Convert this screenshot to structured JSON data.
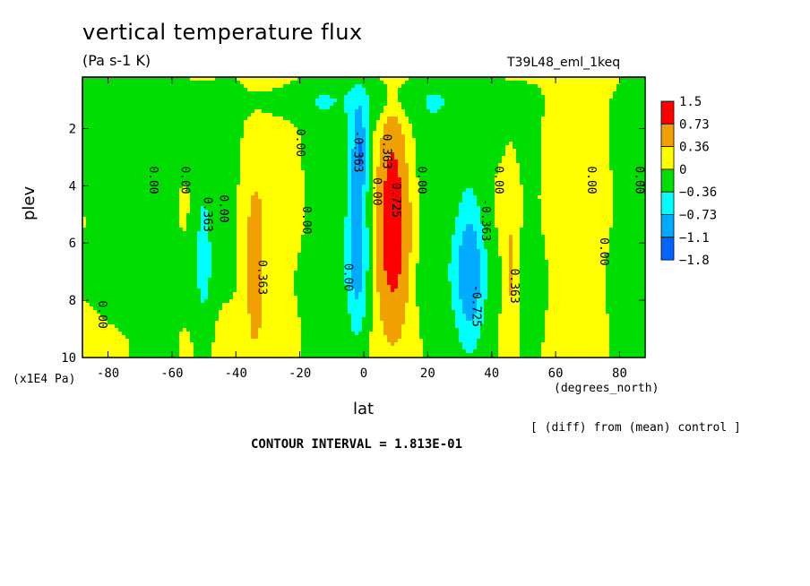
{
  "chart_data": {
    "type": "heatmap",
    "title": "vertical temperature flux",
    "subtitle": "(Pa s-1 K)",
    "run_label": "T39L48_eml_1keq",
    "xlabel": "lat",
    "x_units": "(degrees_north)",
    "ylabel": "plev",
    "y_units": "(x1E4 Pa)",
    "xlim": [
      -88,
      88
    ],
    "ylim": [
      10,
      0.2
    ],
    "x_ticks": [
      "-80",
      "-60",
      "-40",
      "-20",
      "0",
      "20",
      "40",
      "60",
      "80"
    ],
    "x_tick_values": [
      -80,
      -60,
      -40,
      -20,
      0,
      20,
      40,
      60,
      80
    ],
    "y_ticks": [
      "2",
      "4",
      "6",
      "8",
      "10"
    ],
    "y_tick_values": [
      2,
      4,
      6,
      8,
      10
    ],
    "note": "[ (diff) from (mean) control ]",
    "contour_interval": "CONTOUR INTERVAL = 1.813E-01",
    "legend": {
      "placement": "right",
      "labels": [
        "1.5",
        "0.73",
        "0.36",
        "0",
        "−0.36",
        "−0.73",
        "−1.1",
        "−1.8"
      ],
      "colors": [
        "#ff0000",
        "#f0a000",
        "#ffff00",
        "#00dd00",
        "#00ffff",
        "#00aaff",
        "#0066ff"
      ]
    },
    "contour_labels": [
      {
        "text": "0.00",
        "lat": -83,
        "lev": 8.5
      },
      {
        "text": "0.00",
        "lat": -67,
        "lev": 3.8
      },
      {
        "text": "0.00",
        "lat": -57,
        "lev": 3.8
      },
      {
        "text": "0.363",
        "lat": -50,
        "lev": 5.0
      },
      {
        "text": "0.00",
        "lat": -45,
        "lev": 4.8
      },
      {
        "text": "0.00",
        "lat": -21,
        "lev": 2.5
      },
      {
        "text": "0.363",
        "lat": -33,
        "lev": 7.2
      },
      {
        "text": "0.00",
        "lat": -19,
        "lev": 5.2
      },
      {
        "text": "-0.363",
        "lat": -3,
        "lev": 2.8
      },
      {
        "text": "0.00",
        "lat": -6,
        "lev": 7.2
      },
      {
        "text": "0.363",
        "lat": 6,
        "lev": 2.8
      },
      {
        "text": "0.00",
        "lat": 3,
        "lev": 4.2
      },
      {
        "text": "0.725",
        "lat": 9,
        "lev": 4.5
      },
      {
        "text": "0.00",
        "lat": 17,
        "lev": 3.8
      },
      {
        "text": "-0.363",
        "lat": 37,
        "lev": 5.2
      },
      {
        "text": "-0.725",
        "lat": 34,
        "lev": 8.2
      },
      {
        "text": "0.00",
        "lat": 41,
        "lev": 3.8
      },
      {
        "text": "0.363",
        "lat": 46,
        "lev": 7.5
      },
      {
        "text": "0.00",
        "lat": 70,
        "lev": 3.8
      },
      {
        "text": "0.00",
        "lat": 74,
        "lev": 6.3
      },
      {
        "text": "0.00",
        "lat": 85,
        "lev": 3.8
      }
    ],
    "anomalies": [
      {
        "lat": 9,
        "lev": 6.0,
        "value": 1.6,
        "sigma_lat": 3.2,
        "sigma_lev": 1.9
      },
      {
        "lat": 9,
        "lev": 3.2,
        "value": 0.7,
        "sigma_lat": 2.5,
        "sigma_lev": 1.5
      },
      {
        "lat": -2,
        "lev": 5.5,
        "value": -1.1,
        "sigma_lat": 2.4,
        "sigma_lev": 2.6
      },
      {
        "lat": -1,
        "lev": 2.5,
        "value": -0.55,
        "sigma_lat": 1.5,
        "sigma_lev": 0.9
      },
      {
        "lat": 33,
        "lev": 7.0,
        "value": -1.05,
        "sigma_lat": 3.5,
        "sigma_lev": 2.0
      },
      {
        "lat": -50,
        "lev": 6.2,
        "value": -0.55,
        "sigma_lat": 2.2,
        "sigma_lev": 2.2
      },
      {
        "lat": -34,
        "lev": 7.0,
        "value": 0.55,
        "sigma_lat": 2.0,
        "sigma_lev": 1.8
      },
      {
        "lat": 46,
        "lev": 7.0,
        "value": 0.45,
        "sigma_lat": 1.5,
        "sigma_lev": 1.6
      },
      {
        "lat": -80,
        "lev": 2.0,
        "value": -0.3,
        "sigma_lat": 6.0,
        "sigma_lev": 3.0
      },
      {
        "lat": -65,
        "lev": 7.0,
        "value": -0.25,
        "sigma_lat": 3.0,
        "sigma_lev": 3.5
      },
      {
        "lat": -42,
        "lev": 3.5,
        "value": -0.25,
        "sigma_lat": 3.5,
        "sigma_lev": 3.0
      },
      {
        "lat": -13,
        "lev": 6.5,
        "value": -0.3,
        "sigma_lat": 3.5,
        "sigma_lev": 4.0
      },
      {
        "lat": 22,
        "lev": 5.0,
        "value": -0.3,
        "sigma_lat": 3.5,
        "sigma_lev": 4.0
      },
      {
        "lat": 53,
        "lev": 6.5,
        "value": -0.25,
        "sigma_lat": 3.5,
        "sigma_lev": 4.0
      },
      {
        "lat": 82,
        "lev": 7.0,
        "value": -0.25,
        "sigma_lat": 3.5,
        "sigma_lev": 4.0
      },
      {
        "lat": 0,
        "lev": 1.0,
        "value": -0.3,
        "sigma_lat": 40.0,
        "sigma_lev": 0.5
      },
      {
        "lat": -30,
        "lev": 3.0,
        "value": 0.15,
        "sigma_lat": 12.0,
        "sigma_lev": 5.0
      },
      {
        "lat": 60,
        "lev": 3.5,
        "value": 0.15,
        "sigma_lat": 14.0,
        "sigma_lev": 5.0
      }
    ]
  }
}
